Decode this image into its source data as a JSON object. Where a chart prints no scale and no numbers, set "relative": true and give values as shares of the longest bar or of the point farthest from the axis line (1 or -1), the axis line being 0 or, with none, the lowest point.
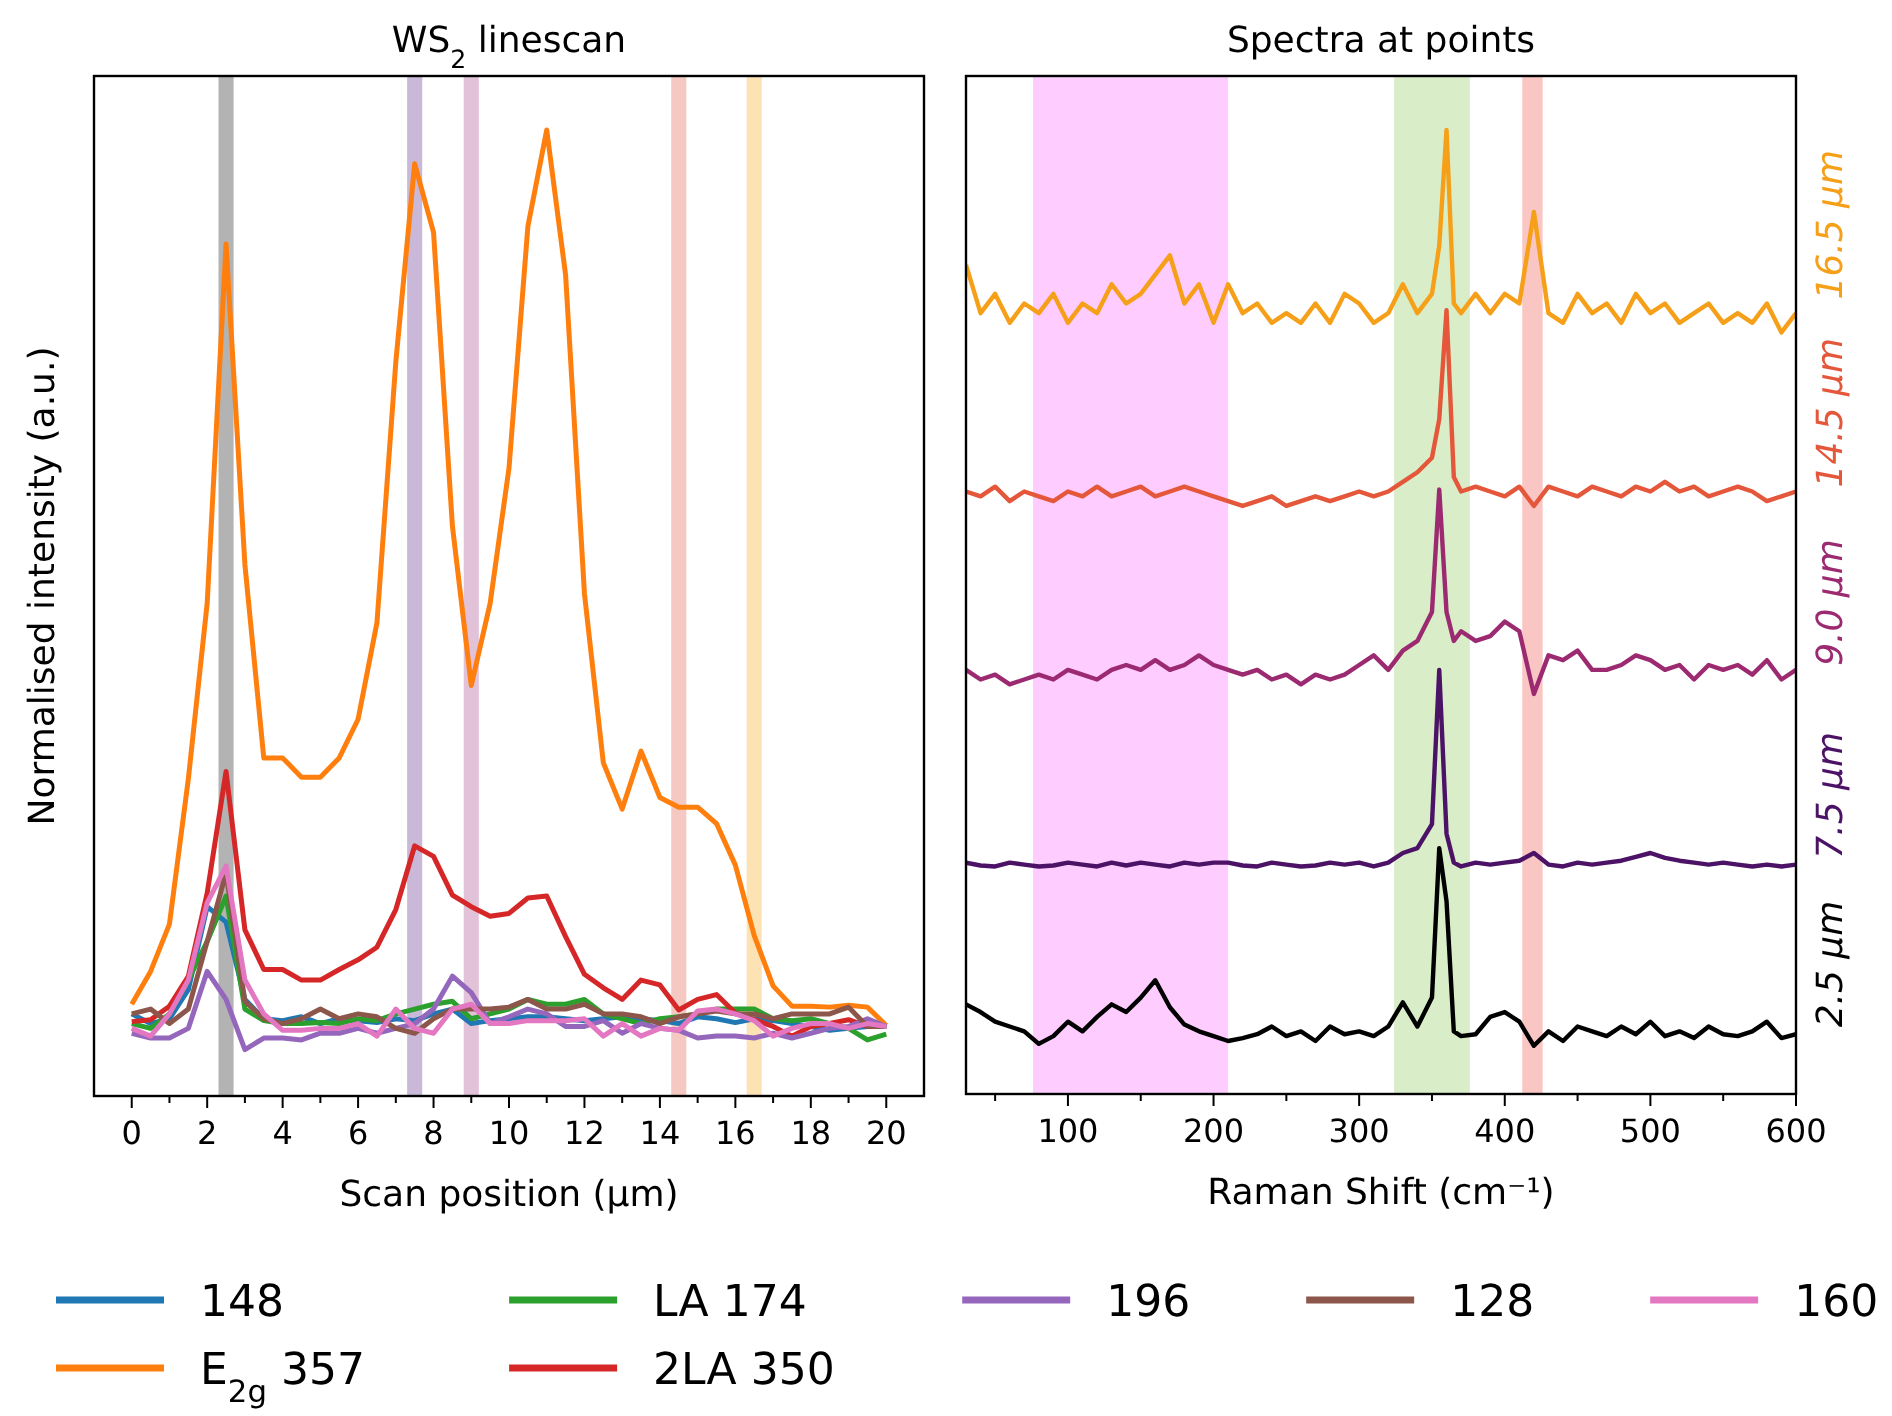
{
  "chart_data": [
    {
      "type": "line",
      "title": "WS$_{2}$ linescan",
      "xlabel": "Scan position (µm)",
      "ylabel": "Normalised intensity (a.u.)",
      "relative": true,
      "tick_labels": "x",
      "legend": "bottom",
      "x": [
        0,
        0.5,
        1,
        1.5,
        2,
        2.5,
        3,
        3.5,
        4,
        4.5,
        5,
        5.5,
        6,
        6.5,
        7,
        7.5,
        8,
        8.5,
        9,
        9.5,
        10,
        10.5,
        11,
        11.5,
        12,
        12.5,
        13,
        13.5,
        14,
        14.5,
        15,
        15.5,
        16,
        16.5,
        17,
        17.5,
        18,
        18.5,
        19,
        19.5,
        20
      ],
      "xlim": [
        -1,
        21
      ],
      "xticks": [
        0,
        {
          "value": 1,
          "label": null
        },
        2,
        {
          "value": 3,
          "label": null
        },
        4,
        {
          "value": 5,
          "label": null
        },
        6,
        {
          "value": 7,
          "label": null
        },
        8,
        {
          "value": 9,
          "label": null
        },
        10,
        {
          "value": 11,
          "label": null
        },
        12,
        {
          "value": 13,
          "label": null
        },
        14,
        {
          "value": 15,
          "label": null
        },
        16,
        {
          "value": 17,
          "label": null
        },
        18,
        {
          "value": 19,
          "label": null
        },
        20
      ],
      "bands": [
        {
          "axis": "x",
          "from": 2.3,
          "to": 2.7,
          "color": "#b3b3b3"
        },
        {
          "axis": "x",
          "from": 7.3,
          "to": 7.7,
          "color": "#c9b8d8"
        },
        {
          "axis": "x",
          "from": 8.8,
          "to": 9.2,
          "color": "#e2c2d8"
        },
        {
          "axis": "x",
          "from": 14.3,
          "to": 14.7,
          "color": "#f5c9c2"
        },
        {
          "axis": "x",
          "from": 16.3,
          "to": 16.7,
          "color": "#fde3b3"
        }
      ],
      "series": [
        {
          "name": "148",
          "color": "#1f77b4",
          "values": [
            0.085,
            0.075,
            0.08,
            0.11,
            0.196,
            0.18,
            0.1,
            0.08,
            0.078,
            0.082,
            0.075,
            0.08,
            0.078,
            0.076,
            0.08,
            0.078,
            0.085,
            0.09,
            0.075,
            0.078,
            0.08,
            0.082,
            0.082,
            0.08,
            0.078,
            0.08,
            0.082,
            0.08,
            0.078,
            0.075,
            0.082,
            0.08,
            0.076,
            0.08,
            0.078,
            0.075,
            0.072,
            0.068,
            0.07,
            0.072,
            0.072
          ]
        },
        {
          "name": "E$_{2g}$ 357",
          "color": "#ff7f0e",
          "values": [
            0.095,
            0.129,
            0.178,
            0.328,
            0.51,
            0.882,
            0.55,
            0.35,
            0.35,
            0.33,
            0.33,
            0.35,
            0.39,
            0.49,
            0.76,
            0.965,
            0.894,
            0.59,
            0.425,
            0.51,
            0.65,
            0.9,
            1.0,
            0.85,
            0.52,
            0.345,
            0.297,
            0.357,
            0.309,
            0.299,
            0.299,
            0.282,
            0.239,
            0.166,
            0.114,
            0.093,
            0.093,
            0.092,
            0.094,
            0.092,
            0.073
          ]
        },
        {
          "name": "LA 174",
          "color": "#2ca02c",
          "values": [
            0.075,
            0.07,
            0.085,
            0.12,
            0.16,
            0.207,
            0.09,
            0.078,
            0.075,
            0.075,
            0.076,
            0.075,
            0.08,
            0.078,
            0.085,
            0.09,
            0.095,
            0.098,
            0.08,
            0.085,
            0.09,
            0.1,
            0.095,
            0.095,
            0.1,
            0.085,
            0.08,
            0.075,
            0.08,
            0.082,
            0.085,
            0.09,
            0.09,
            0.09,
            0.08,
            0.078,
            0.08,
            0.075,
            0.07,
            0.058,
            0.064
          ]
        },
        {
          "name": "2LA 350",
          "color": "#d62728",
          "values": [
            0.077,
            0.079,
            0.093,
            0.124,
            0.21,
            0.336,
            0.172,
            0.131,
            0.131,
            0.12,
            0.12,
            0.131,
            0.141,
            0.154,
            0.193,
            0.259,
            0.248,
            0.208,
            0.196,
            0.186,
            0.189,
            0.205,
            0.207,
            0.165,
            0.126,
            0.112,
            0.1,
            0.12,
            0.115,
            0.089,
            0.1,
            0.105,
            0.086,
            0.079,
            0.072,
            0.062,
            0.072,
            0.075,
            0.079,
            0.072,
            0.072
          ]
        },
        {
          "name": "196",
          "color": "#9467bd",
          "values": [
            0.065,
            0.06,
            0.06,
            0.07,
            0.129,
            0.1,
            0.048,
            0.06,
            0.06,
            0.058,
            0.065,
            0.065,
            0.07,
            0.065,
            0.07,
            0.075,
            0.09,
            0.124,
            0.107,
            0.075,
            0.082,
            0.09,
            0.085,
            0.072,
            0.072,
            0.078,
            0.065,
            0.075,
            0.07,
            0.068,
            0.06,
            0.062,
            0.062,
            0.06,
            0.065,
            0.06,
            0.065,
            0.07,
            0.072,
            0.08,
            0.072
          ]
        },
        {
          "name": "128",
          "color": "#8c564b",
          "values": [
            0.085,
            0.09,
            0.075,
            0.09,
            0.16,
            0.231,
            0.098,
            0.08,
            0.075,
            0.08,
            0.09,
            0.08,
            0.085,
            0.082,
            0.07,
            0.065,
            0.08,
            0.09,
            0.09,
            0.09,
            0.092,
            0.1,
            0.09,
            0.09,
            0.095,
            0.085,
            0.085,
            0.082,
            0.075,
            0.082,
            0.085,
            0.088,
            0.085,
            0.085,
            0.08,
            0.085,
            0.085,
            0.085,
            0.092,
            0.072,
            0.072
          ]
        },
        {
          "name": "160",
          "color": "#e377c2",
          "values": [
            0.07,
            0.062,
            0.085,
            0.12,
            0.2,
            0.238,
            0.12,
            0.085,
            0.068,
            0.068,
            0.07,
            0.07,
            0.075,
            0.062,
            0.09,
            0.07,
            0.065,
            0.09,
            0.095,
            0.075,
            0.075,
            0.078,
            0.078,
            0.078,
            0.08,
            0.062,
            0.075,
            0.062,
            0.07,
            0.068,
            0.088,
            0.09,
            0.085,
            0.078,
            0.062,
            0.07,
            0.075,
            0.075,
            0.07,
            0.075,
            0.072
          ]
        }
      ]
    },
    {
      "type": "line",
      "title": "Spectra at points",
      "xlabel": "Raman Shift (cm⁻¹)",
      "relative": true,
      "tick_labels": "x",
      "legend": "right",
      "x": [
        30,
        40,
        50,
        60,
        70,
        80,
        90,
        100,
        110,
        120,
        130,
        140,
        150,
        160,
        170,
        180,
        190,
        200,
        210,
        220,
        230,
        240,
        250,
        260,
        270,
        280,
        290,
        300,
        310,
        320,
        330,
        340,
        350,
        355,
        360,
        365,
        370,
        380,
        390,
        400,
        410,
        420,
        430,
        440,
        450,
        460,
        470,
        480,
        490,
        500,
        510,
        520,
        530,
        540,
        550,
        560,
        570,
        580,
        590,
        600
      ],
      "xlim": [
        30,
        600
      ],
      "xticks": [
        {
          "value": 50,
          "label": null
        },
        100,
        {
          "value": 150,
          "label": null
        },
        200,
        {
          "value": 250,
          "label": null
        },
        300,
        {
          "value": 350,
          "label": null
        },
        400,
        {
          "value": 450,
          "label": null
        },
        500,
        {
          "value": 550,
          "label": null
        },
        600
      ],
      "bands": [
        {
          "axis": "x",
          "from": 76,
          "to": 210,
          "color": "#ffccff"
        },
        {
          "axis": "x",
          "from": 324,
          "to": 376,
          "color": "#d9edc9"
        },
        {
          "axis": "x",
          "from": 412,
          "to": 426,
          "color": "#fac6c4"
        }
      ],
      "series": [
        {
          "name": "2.5 µm",
          "color": "#000000",
          "values": [
            0.093,
            0.085,
            0.075,
            0.07,
            0.065,
            0.052,
            0.06,
            0.075,
            0.065,
            0.08,
            0.093,
            0.085,
            0.1,
            0.118,
            0.09,
            0.072,
            0.065,
            0.06,
            0.055,
            0.058,
            0.062,
            0.07,
            0.06,
            0.065,
            0.055,
            0.07,
            0.062,
            0.065,
            0.06,
            0.07,
            0.095,
            0.07,
            0.1,
            0.255,
            0.2,
            0.065,
            0.06,
            0.062,
            0.08,
            0.085,
            0.075,
            0.05,
            0.065,
            0.055,
            0.07,
            0.065,
            0.06,
            0.07,
            0.062,
            0.075,
            0.06,
            0.065,
            0.058,
            0.07,
            0.062,
            0.06,
            0.065,
            0.075,
            0.058,
            0.062
          ]
        },
        {
          "name": "7.5 µm",
          "color": "#4b1266",
          "values": [
            0.24,
            0.237,
            0.236,
            0.24,
            0.238,
            0.236,
            0.237,
            0.24,
            0.238,
            0.236,
            0.24,
            0.237,
            0.24,
            0.238,
            0.236,
            0.24,
            0.238,
            0.24,
            0.24,
            0.237,
            0.236,
            0.24,
            0.238,
            0.236,
            0.237,
            0.24,
            0.238,
            0.24,
            0.236,
            0.24,
            0.25,
            0.255,
            0.28,
            0.44,
            0.27,
            0.24,
            0.236,
            0.24,
            0.238,
            0.24,
            0.242,
            0.25,
            0.238,
            0.236,
            0.24,
            0.238,
            0.24,
            0.242,
            0.246,
            0.25,
            0.245,
            0.242,
            0.24,
            0.238,
            0.24,
            0.238,
            0.236,
            0.238,
            0.236,
            0.238
          ]
        },
        {
          "name": "9.0 µm",
          "color": "#9c2a70",
          "values": [
            0.44,
            0.43,
            0.435,
            0.425,
            0.43,
            0.435,
            0.43,
            0.44,
            0.435,
            0.43,
            0.44,
            0.445,
            0.44,
            0.45,
            0.44,
            0.445,
            0.455,
            0.445,
            0.44,
            0.435,
            0.44,
            0.43,
            0.435,
            0.425,
            0.435,
            0.43,
            0.435,
            0.445,
            0.455,
            0.44,
            0.46,
            0.47,
            0.5,
            0.627,
            0.5,
            0.47,
            0.48,
            0.47,
            0.475,
            0.49,
            0.48,
            0.415,
            0.455,
            0.45,
            0.46,
            0.44,
            0.44,
            0.445,
            0.455,
            0.45,
            0.44,
            0.445,
            0.43,
            0.445,
            0.44,
            0.445,
            0.435,
            0.45,
            0.43,
            0.44
          ]
        },
        {
          "name": "14.5 µm",
          "color": "#e4573a",
          "values": [
            0.625,
            0.62,
            0.63,
            0.615,
            0.625,
            0.62,
            0.615,
            0.625,
            0.62,
            0.63,
            0.62,
            0.625,
            0.63,
            0.62,
            0.625,
            0.63,
            0.625,
            0.62,
            0.615,
            0.61,
            0.615,
            0.62,
            0.61,
            0.615,
            0.62,
            0.615,
            0.62,
            0.625,
            0.62,
            0.625,
            0.635,
            0.645,
            0.66,
            0.7,
            0.813,
            0.64,
            0.625,
            0.63,
            0.625,
            0.62,
            0.63,
            0.61,
            0.63,
            0.625,
            0.62,
            0.63,
            0.625,
            0.62,
            0.63,
            0.625,
            0.635,
            0.625,
            0.63,
            0.62,
            0.625,
            0.63,
            0.625,
            0.615,
            0.62,
            0.625
          ]
        },
        {
          "name": "16.5 µm",
          "color": "#f6a01a",
          "values": [
            0.86,
            0.81,
            0.83,
            0.8,
            0.82,
            0.81,
            0.83,
            0.8,
            0.82,
            0.81,
            0.84,
            0.82,
            0.83,
            0.85,
            0.87,
            0.82,
            0.84,
            0.8,
            0.84,
            0.81,
            0.82,
            0.8,
            0.81,
            0.8,
            0.82,
            0.8,
            0.83,
            0.82,
            0.8,
            0.81,
            0.84,
            0.81,
            0.83,
            0.88,
            1.0,
            0.82,
            0.81,
            0.83,
            0.81,
            0.83,
            0.82,
            0.915,
            0.81,
            0.8,
            0.83,
            0.81,
            0.82,
            0.8,
            0.83,
            0.81,
            0.82,
            0.8,
            0.81,
            0.82,
            0.8,
            0.81,
            0.8,
            0.82,
            0.79,
            0.81
          ]
        }
      ]
    }
  ]
}
